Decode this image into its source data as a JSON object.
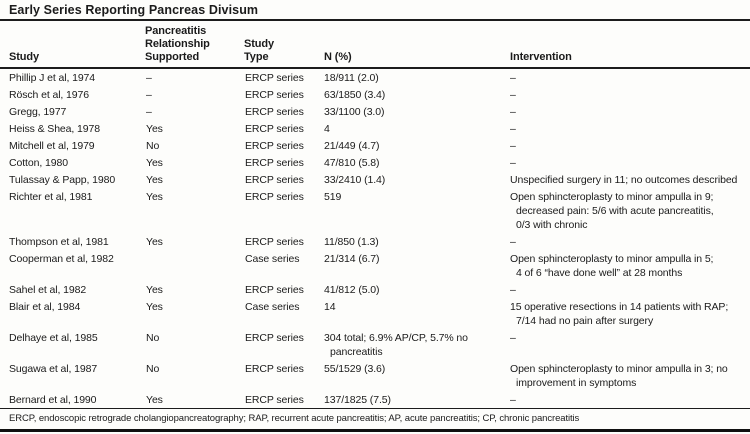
{
  "title": "Early Series Reporting Pancreas Divisum",
  "table": {
    "columns": {
      "study": "Study",
      "supported": "Pancreatitis\nRelationship\nSupported",
      "type": "Study\nType",
      "n": "N (%)",
      "intervention": "Intervention"
    },
    "rows": [
      {
        "study": "Phillip J et al, 1974",
        "supported": "–",
        "type": "ERCP series",
        "n": "18/911 (2.0)",
        "intervention": "–"
      },
      {
        "study": "Rösch et al, 1976",
        "supported": "–",
        "type": "ERCP series",
        "n": "63/1850 (3.4)",
        "intervention": "–"
      },
      {
        "study": "Gregg, 1977",
        "supported": "–",
        "type": "ERCP series",
        "n": "33/1100 (3.0)",
        "intervention": "–"
      },
      {
        "study": "Heiss & Shea, 1978",
        "supported": "Yes",
        "type": "ERCP series",
        "n": "4",
        "intervention": "–"
      },
      {
        "study": "Mitchell et al, 1979",
        "supported": "No",
        "type": "ERCP series",
        "n": "21/449 (4.7)",
        "intervention": "–"
      },
      {
        "study": "Cotton, 1980",
        "supported": "Yes",
        "type": "ERCP series",
        "n": "47/810 (5.8)",
        "intervention": "–"
      },
      {
        "study": "Tulassay & Papp, 1980",
        "supported": "Yes",
        "type": "ERCP series",
        "n": "33/2410 (1.4)",
        "intervention": "Unspecified surgery in 11; no outcomes described"
      },
      {
        "study": "Richter et al, 1981",
        "supported": "Yes",
        "type": "ERCP series",
        "n": "519",
        "intervention": "Open sphincteroplasty to minor ampulla in 9;\ndecreased pain: 5/6 with acute pancreatitis,\n0/3 with chronic"
      },
      {
        "study": "Thompson et al, 1981",
        "supported": "Yes",
        "type": "ERCP series",
        "n": "11/850 (1.3)",
        "intervention": "–"
      },
      {
        "study": "Cooperman et al, 1982",
        "supported": "",
        "type": "Case series",
        "n": "21/314 (6.7)",
        "intervention": "Open sphincteroplasty to minor ampulla in 5;\n4 of 6 “have done well” at 28 months"
      },
      {
        "study": "Sahel et al, 1982",
        "supported": "Yes",
        "type": "ERCP series",
        "n": "41/812 (5.0)",
        "intervention": "–"
      },
      {
        "study": "Blair et al, 1984",
        "supported": "Yes",
        "type": "Case series",
        "n": "14",
        "intervention": "15 operative resections in 14 patients with RAP;\n7/14 had no pain after surgery"
      },
      {
        "study": "Delhaye et al, 1985",
        "supported": "No",
        "type": "ERCP series",
        "n": "304 total; 6.9% AP/CP, 5.7% no\npancreatitis",
        "intervention": "–"
      },
      {
        "study": "Sugawa et al, 1987",
        "supported": "No",
        "type": "ERCP series",
        "n": "55/1529 (3.6)",
        "intervention": "Open sphincteroplasty to minor ampulla in 3; no\nimprovement in symptoms"
      },
      {
        "study": "Bernard et al, 1990",
        "supported": "Yes",
        "type": "ERCP series",
        "n": "137/1825 (7.5)",
        "intervention": "–"
      }
    ]
  },
  "footnote": "ERCP, endoscopic retrograde cholangiopancreatography; RAP, recurrent acute pancreatitis; AP, acute pancreatitis; CP, chronic pancreatitis",
  "colors": {
    "background": "#fdfdfb",
    "text": "#1b1b1b",
    "rule": "#1c1c1c"
  }
}
